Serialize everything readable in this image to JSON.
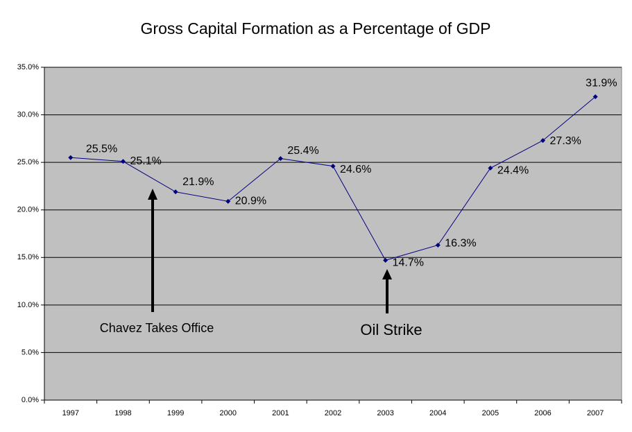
{
  "chart_data": {
    "type": "line",
    "title": "Gross Capital Formation as a Percentage of GDP",
    "categories": [
      "1997",
      "1998",
      "1999",
      "2000",
      "2001",
      "2002",
      "2003",
      "2004",
      "2005",
      "2006",
      "2007"
    ],
    "series": [
      {
        "color": "#000080",
        "values": [
          25.5,
          25.1,
          21.9,
          20.9,
          25.4,
          24.6,
          14.7,
          16.3,
          24.4,
          27.3,
          31.9
        ],
        "value_labels": [
          "25.5%",
          "25.1%",
          "21.9%",
          "20.9%",
          "25.4%",
          "24.6%",
          "14.7%",
          "16.3%",
          "24.4%",
          "27.3%",
          "31.9%"
        ]
      }
    ],
    "ylim": [
      0,
      35
    ],
    "yticks": [
      {
        "value": 0,
        "label": "0.0%"
      },
      {
        "value": 5,
        "label": "5.0%"
      },
      {
        "value": 10,
        "label": "10.0%"
      },
      {
        "value": 15,
        "label": "15.0%"
      },
      {
        "value": 20,
        "label": "20.0%"
      },
      {
        "value": 25,
        "label": "25.0%"
      },
      {
        "value": 30,
        "label": "30.0%"
      },
      {
        "value": 35,
        "label": "35.0%"
      }
    ],
    "grid": true,
    "annotations": [
      "Chavez Takes Office",
      "Oil Strike"
    ]
  }
}
